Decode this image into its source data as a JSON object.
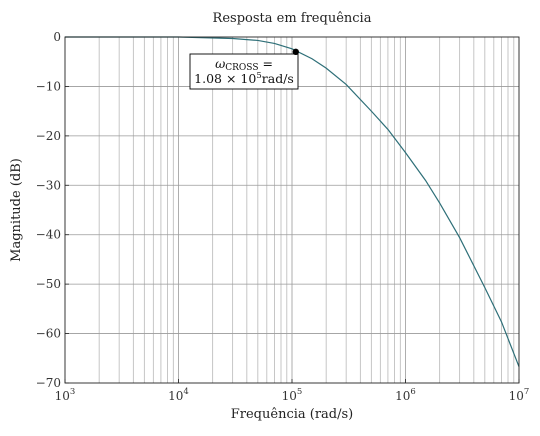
{
  "chart_data": {
    "type": "line",
    "title": "Resposta em frequência",
    "xlabel": "Frequência (rad/s)",
    "ylabel": "Magnitude (dB)",
    "x_scale": "log",
    "xlim": [
      1000,
      10000000
    ],
    "ylim": [
      -70,
      0
    ],
    "grid": true,
    "x_ticks": [
      {
        "value": 1000,
        "mantissa": "10",
        "exp": "3"
      },
      {
        "value": 10000,
        "mantissa": "10",
        "exp": "4"
      },
      {
        "value": 100000,
        "mantissa": "10",
        "exp": "5"
      },
      {
        "value": 1000000,
        "mantissa": "10",
        "exp": "6"
      },
      {
        "value": 10000000,
        "mantissa": "10",
        "exp": "7"
      }
    ],
    "y_ticks": [
      {
        "value": 0,
        "label": "0"
      },
      {
        "value": -10,
        "label": "−10"
      },
      {
        "value": -20,
        "label": "−20"
      },
      {
        "value": -30,
        "label": "−30"
      },
      {
        "value": -40,
        "label": "−40"
      },
      {
        "value": -50,
        "label": "−50"
      },
      {
        "value": -60,
        "label": "−60"
      },
      {
        "value": -70,
        "label": "−70"
      }
    ],
    "series": [
      {
        "color": "#2e6f78",
        "x": [
          1000,
          10000,
          30000,
          50000,
          70000,
          100000,
          150000,
          200000,
          300000,
          500000,
          700000,
          1000000,
          1500000,
          2000000,
          3000000,
          5000000,
          7000000,
          10000000
        ],
        "y": [
          0,
          0,
          -0.3,
          -0.7,
          -1.3,
          -2.4,
          -4.4,
          -6.3,
          -9.6,
          -15.0,
          -18.7,
          -23.4,
          -29.0,
          -33.6,
          -40.6,
          -50.7,
          -57.6,
          -66.7
        ]
      }
    ],
    "annotation": {
      "x": 108000,
      "y": -3,
      "marker_color": "#000000",
      "omega": "ω",
      "subscript": "CROSS",
      "equals": " =",
      "value_prefix": "1.08 × 10",
      "value_exp": "5",
      "value_unit": "rad/s"
    }
  }
}
